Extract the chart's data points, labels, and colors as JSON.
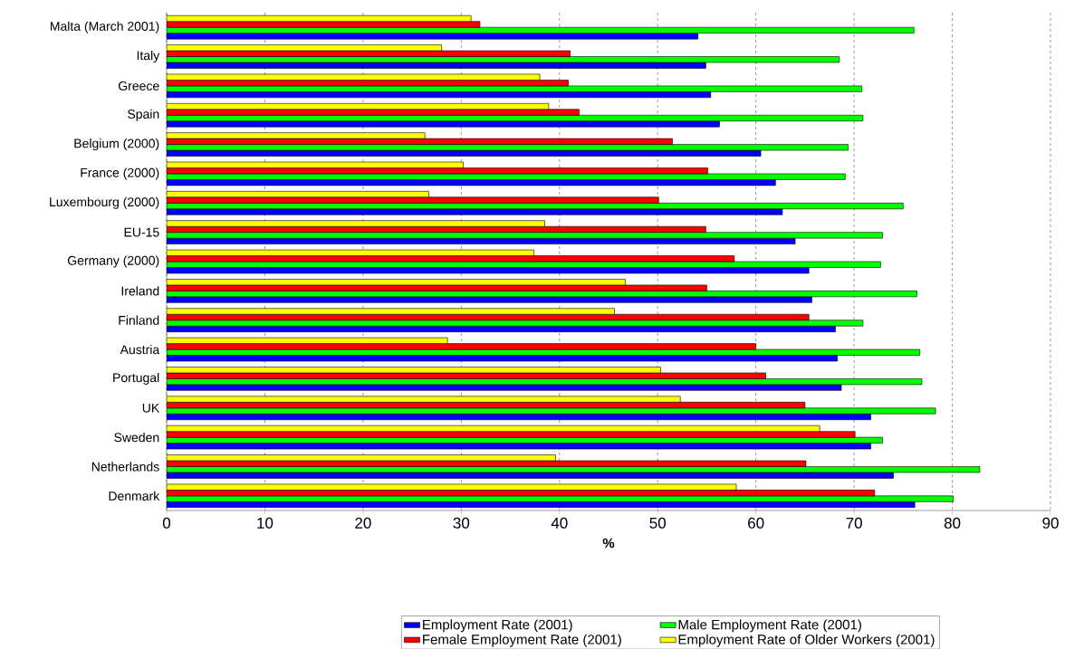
{
  "chart_data": {
    "type": "bar",
    "orientation": "horizontal",
    "xlabel": "%",
    "categories": [
      "Malta (March 2001)",
      "Italy",
      "Greece",
      "Spain",
      "Belgium (2000)",
      "France (2000)",
      "Luxembourg (2000)",
      "EU-15",
      "Germany (2000)",
      "Ireland",
      "Finland",
      "Austria",
      "Portugal",
      "UK",
      "Sweden",
      "Netherlands",
      "Denmark"
    ],
    "series": [
      {
        "name": "Employment Rate (2001)",
        "color": "#0000ff",
        "values": [
          54.1,
          54.9,
          55.4,
          56.3,
          60.5,
          62.0,
          62.7,
          64.0,
          65.4,
          65.7,
          68.1,
          68.3,
          68.7,
          71.7,
          71.7,
          74.0,
          76.2
        ]
      },
      {
        "name": "Male Employment Rate (2001)",
        "color": "#00ff00",
        "values": [
          76.1,
          68.5,
          70.8,
          70.9,
          69.4,
          69.1,
          75.0,
          72.9,
          72.7,
          76.4,
          70.9,
          76.7,
          76.9,
          78.3,
          72.9,
          82.8,
          80.1
        ]
      },
      {
        "name": "Female Employment Rate (2001)",
        "color": "#ff0000",
        "values": [
          31.9,
          41.1,
          40.9,
          42.0,
          51.5,
          55.1,
          50.1,
          54.9,
          57.8,
          55.0,
          65.4,
          60.0,
          61.0,
          65.0,
          70.1,
          65.1,
          72.1
        ]
      },
      {
        "name": "Employment Rate of Older Workers (2001)",
        "color": "#ffff00",
        "values": [
          31.0,
          28.0,
          38.0,
          38.9,
          26.3,
          30.2,
          26.7,
          38.5,
          37.4,
          46.7,
          45.6,
          28.6,
          50.3,
          52.3,
          66.5,
          39.6,
          58.0
        ]
      }
    ],
    "xlim": [
      0,
      90
    ],
    "xticks": [
      0,
      10,
      20,
      30,
      40,
      50,
      60,
      70,
      80,
      90
    ],
    "grid": "x",
    "legend": "bottom"
  }
}
